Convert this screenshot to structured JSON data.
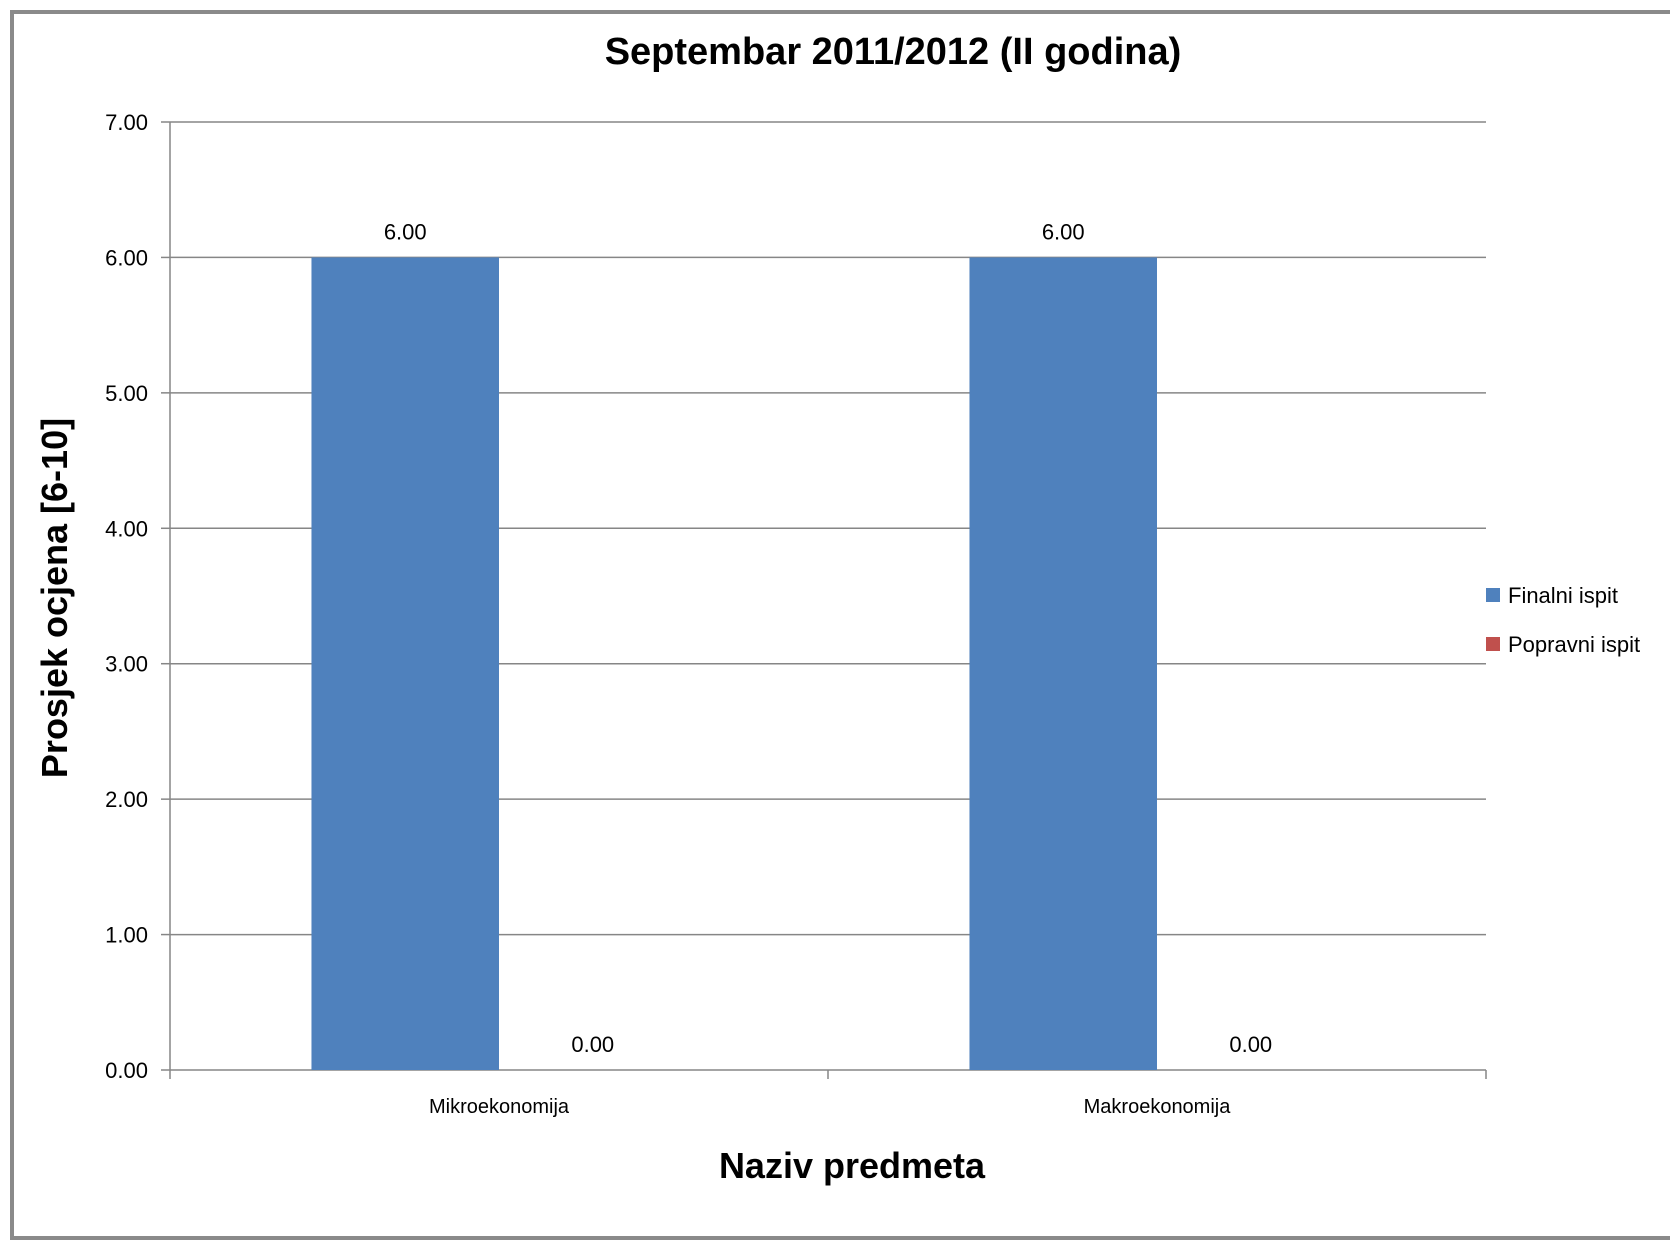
{
  "chart_data": {
    "type": "bar",
    "title": "Septembar 2011/2012 (II godina)",
    "xlabel": "Naziv predmeta",
    "ylabel": "Prosjek ocjena [6-10]",
    "categories": [
      "Mikroekonomija",
      "Makroekonomija"
    ],
    "series": [
      {
        "name": "Finalni ispit",
        "values": [
          6.0,
          6.0
        ],
        "color": "#4F81BD"
      },
      {
        "name": "Popravni ispit",
        "values": [
          0.0,
          0.0
        ],
        "color": "#C0504D"
      }
    ],
    "ylim": [
      0,
      7
    ],
    "yticks": [
      "0.00",
      "1.00",
      "2.00",
      "3.00",
      "4.00",
      "5.00",
      "6.00",
      "7.00"
    ],
    "data_labels": true,
    "grid": true,
    "legend_position": "right"
  }
}
